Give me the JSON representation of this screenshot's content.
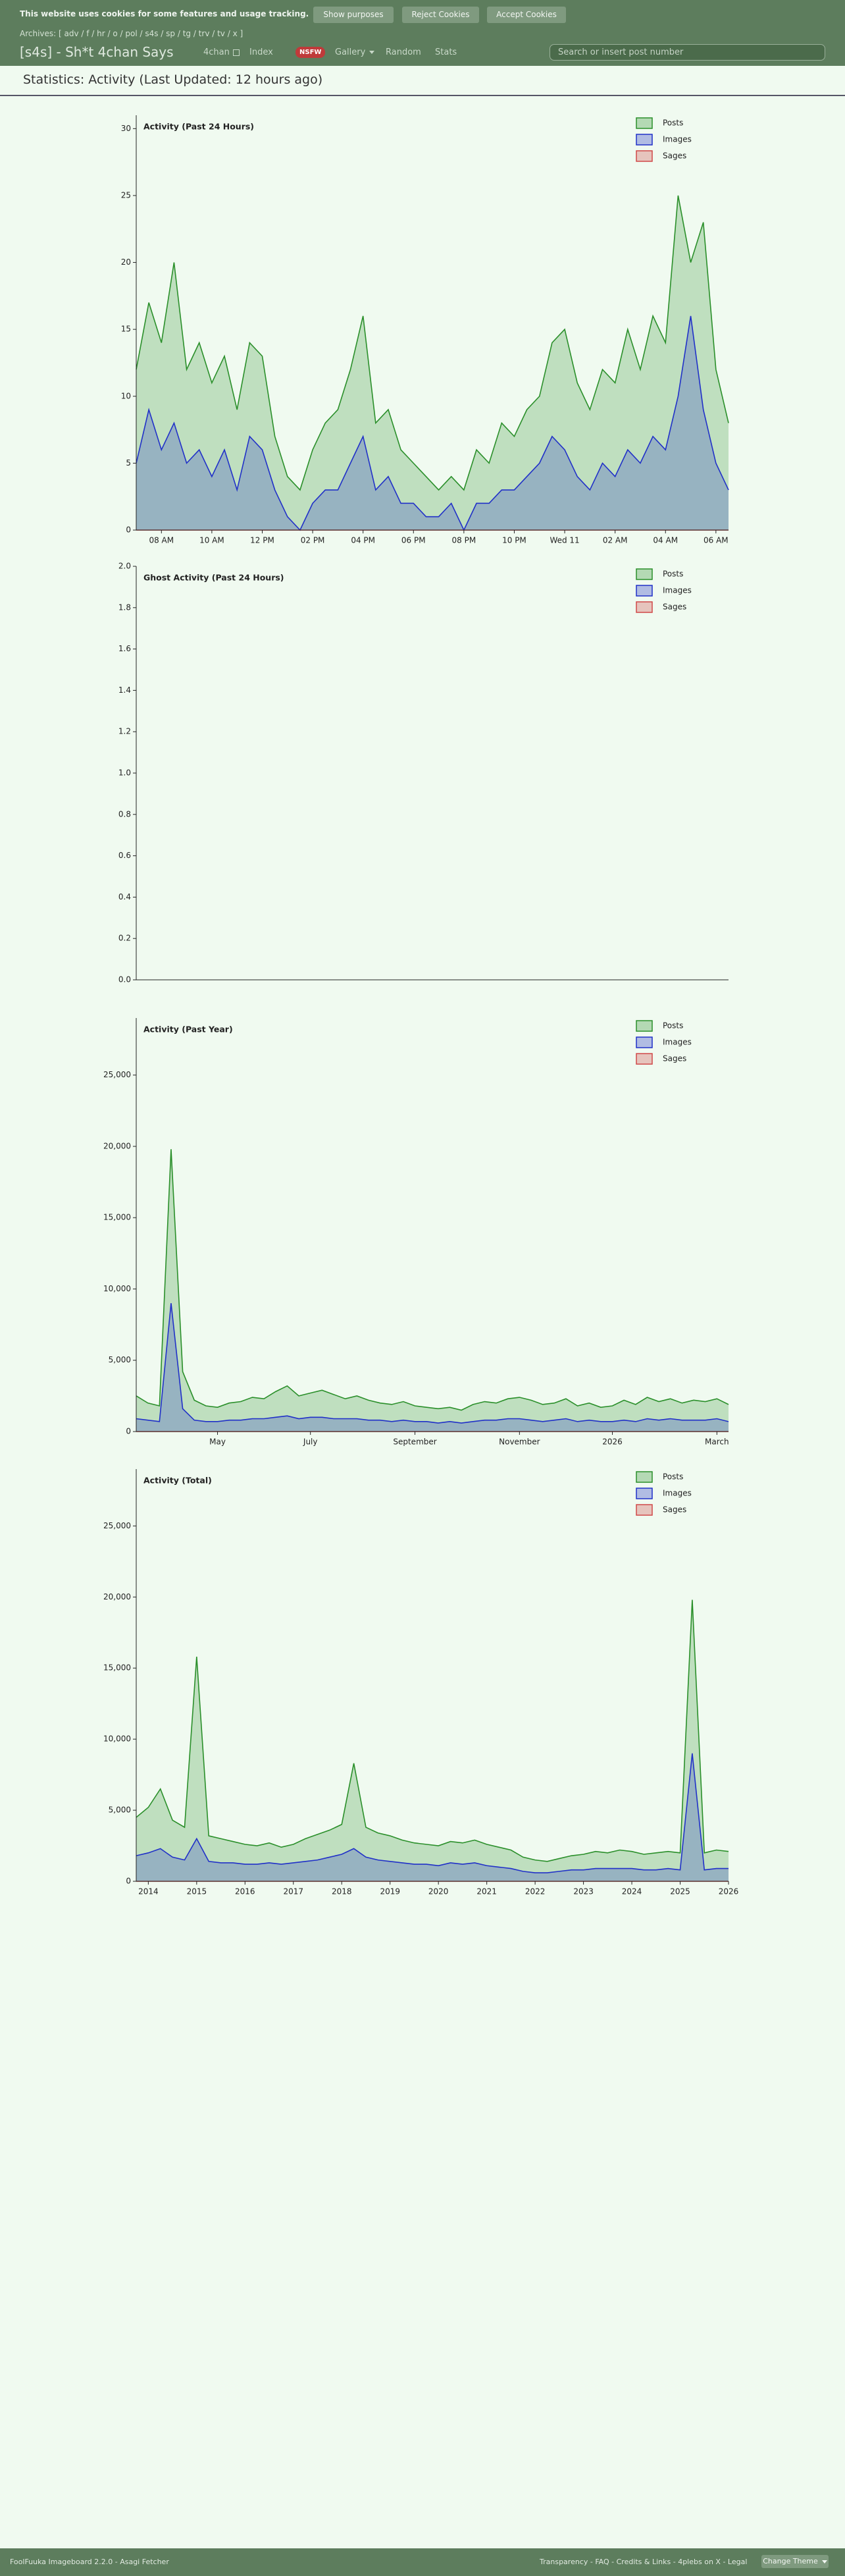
{
  "cookie_bar": {
    "text": "This website uses cookies for some features and usage tracking.",
    "buttons": [
      "Show purposes",
      "Reject Cookies",
      "Accept Cookies"
    ]
  },
  "archives": "Archives: [ adv / f / hr / o / pol / s4s / sp / tg / trv / tv / x ]",
  "header": {
    "board_title": "[s4s] - Sh*t 4chan Says",
    "nav": [
      "4chan",
      "Index",
      "NSFW",
      "Gallery",
      "Random",
      "Stats"
    ],
    "search_placeholder": "Search or insert post number"
  },
  "page_title": "Statistics: Activity (Last Updated: 12 hours ago)",
  "chart_data": [
    {
      "type": "area",
      "title": "Activity (Past 24 Hours)",
      "legend": "top-right",
      "categories": [
        null,
        null,
        "08 AM",
        null,
        null,
        null,
        "10 AM",
        null,
        null,
        null,
        "12 PM",
        null,
        null,
        null,
        "02 PM",
        null,
        null,
        null,
        "04 PM",
        null,
        null,
        null,
        "06 PM",
        null,
        null,
        null,
        "08 PM",
        null,
        null,
        null,
        "10 PM",
        null,
        null,
        null,
        "Wed 11",
        null,
        null,
        null,
        "02 AM",
        null,
        null,
        null,
        "04 AM",
        null,
        null,
        null,
        "06 AM",
        null
      ],
      "ylim": [
        0,
        31
      ],
      "yticks": [
        0,
        5,
        10,
        15,
        20,
        25,
        30
      ],
      "series": [
        {
          "name": "Posts",
          "color": "#2a8f2a",
          "values": [
            12,
            17,
            14,
            20,
            12,
            14,
            11,
            13,
            9,
            14,
            13,
            7,
            4,
            3,
            6,
            8,
            9,
            12,
            16,
            8,
            9,
            6,
            5,
            4,
            3,
            4,
            3,
            6,
            5,
            8,
            7,
            9,
            10,
            14,
            15,
            11,
            9,
            12,
            11,
            15,
            12,
            16,
            14,
            25,
            20,
            23,
            12,
            8
          ]
        },
        {
          "name": "Images",
          "color": "#2030c8",
          "values": [
            5,
            9,
            6,
            8,
            5,
            6,
            4,
            6,
            3,
            7,
            6,
            3,
            1,
            0,
            2,
            3,
            3,
            5,
            7,
            3,
            4,
            2,
            2,
            1,
            1,
            2,
            0,
            2,
            2,
            3,
            3,
            4,
            5,
            7,
            6,
            4,
            3,
            5,
            4,
            6,
            5,
            7,
            6,
            10,
            16,
            9,
            5,
            3
          ]
        },
        {
          "name": "Sages",
          "color": "#d04848",
          "values": [
            0,
            0,
            0,
            0,
            0,
            0,
            0,
            0,
            0,
            0,
            0,
            0,
            0,
            0,
            0,
            0,
            0,
            0,
            0,
            0,
            0,
            0,
            0,
            0,
            0,
            0,
            0,
            0,
            0,
            0,
            0,
            0,
            0,
            0,
            0,
            0,
            0,
            0,
            0,
            0,
            0,
            0,
            0,
            0,
            0,
            0,
            0,
            0
          ]
        }
      ]
    },
    {
      "type": "area",
      "title": "Ghost Activity (Past 24 Hours)",
      "legend": "top-right",
      "categories": [],
      "ylim": [
        0,
        2
      ],
      "yticks": [
        {
          "value": 0,
          "label": "0.0"
        },
        {
          "value": 0.2,
          "label": "0.2"
        },
        {
          "value": 0.4,
          "label": "0.4"
        },
        {
          "value": 0.6,
          "label": "0.6"
        },
        {
          "value": 0.8,
          "label": "0.8"
        },
        {
          "value": 1,
          "label": "1.0"
        },
        {
          "value": 1.2,
          "label": "1.2"
        },
        {
          "value": 1.4,
          "label": "1.4"
        },
        {
          "value": 1.6,
          "label": "1.6"
        },
        {
          "value": 1.8,
          "label": "1.8"
        },
        {
          "value": 2,
          "label": "2.0"
        }
      ],
      "series": [
        {
          "name": "Posts",
          "color": "#2a8f2a",
          "values": []
        },
        {
          "name": "Images",
          "color": "#2030c8",
          "values": []
        },
        {
          "name": "Sages",
          "color": "#d04848",
          "values": []
        }
      ]
    },
    {
      "type": "area",
      "title": "Activity (Past Year)",
      "legend": "top-right",
      "categories": [
        null,
        null,
        null,
        null,
        null,
        null,
        null,
        "May",
        null,
        null,
        null,
        null,
        null,
        null,
        null,
        "July",
        null,
        null,
        null,
        null,
        null,
        null,
        null,
        null,
        "September",
        null,
        null,
        null,
        null,
        null,
        null,
        null,
        null,
        "November",
        null,
        null,
        null,
        null,
        null,
        null,
        null,
        "2026",
        null,
        null,
        null,
        null,
        null,
        null,
        null,
        null,
        "March",
        null
      ],
      "ylim": [
        0,
        29000
      ],
      "yticks": [
        0,
        {
          "value": 5000,
          "label": "5,000"
        },
        {
          "value": 10000,
          "label": "10,000"
        },
        {
          "value": 15000,
          "label": "15,000"
        },
        {
          "value": 20000,
          "label": "20,000"
        },
        {
          "value": 25000,
          "label": "25,000"
        }
      ],
      "series": [
        {
          "name": "Posts",
          "color": "#2a8f2a",
          "values": [
            2500,
            2000,
            1800,
            19800,
            4200,
            2200,
            1800,
            1700,
            2000,
            2100,
            2400,
            2300,
            2800,
            3200,
            2500,
            2700,
            2900,
            2600,
            2300,
            2500,
            2200,
            2000,
            1900,
            2100,
            1800,
            1700,
            1600,
            1700,
            1500,
            1900,
            2100,
            2000,
            2300,
            2400,
            2200,
            1900,
            2000,
            2300,
            1800,
            2000,
            1700,
            1800,
            2200,
            1900,
            2400,
            2100,
            2300,
            2000,
            2200,
            2100,
            2300,
            1900
          ]
        },
        {
          "name": "Images",
          "color": "#2030c8",
          "values": [
            900,
            800,
            700,
            9000,
            1600,
            800,
            700,
            700,
            800,
            800,
            900,
            900,
            1000,
            1100,
            900,
            1000,
            1000,
            900,
            900,
            900,
            800,
            800,
            700,
            800,
            700,
            700,
            600,
            700,
            600,
            700,
            800,
            800,
            900,
            900,
            800,
            700,
            800,
            900,
            700,
            800,
            700,
            700,
            800,
            700,
            900,
            800,
            900,
            800,
            800,
            800,
            900,
            700
          ]
        },
        {
          "name": "Sages",
          "color": "#d04848",
          "values": [
            0,
            0,
            0,
            0,
            0,
            0,
            0,
            0,
            0,
            0,
            0,
            0,
            0,
            0,
            0,
            0,
            0,
            0,
            0,
            0,
            0,
            0,
            0,
            0,
            0,
            0,
            0,
            0,
            0,
            0,
            0,
            0,
            0,
            0,
            0,
            0,
            0,
            0,
            0,
            0,
            0,
            0,
            0,
            0,
            0,
            0,
            0,
            0,
            0,
            0,
            0,
            0
          ]
        }
      ]
    },
    {
      "type": "area",
      "title": "Activity (Total)",
      "legend": "top-right",
      "categories": [
        null,
        "2014",
        null,
        null,
        null,
        "2015",
        null,
        null,
        null,
        "2016",
        null,
        null,
        null,
        "2017",
        null,
        null,
        null,
        "2018",
        null,
        null,
        null,
        "2019",
        null,
        null,
        null,
        "2020",
        null,
        null,
        null,
        "2021",
        null,
        null,
        null,
        "2022",
        null,
        null,
        null,
        "2023",
        null,
        null,
        null,
        "2024",
        null,
        null,
        null,
        "2025",
        null,
        null,
        null,
        "2026"
      ],
      "ylim": [
        0,
        29000
      ],
      "yticks": [
        0,
        {
          "value": 5000,
          "label": "5,000"
        },
        {
          "value": 10000,
          "label": "10,000"
        },
        {
          "value": 15000,
          "label": "15,000"
        },
        {
          "value": 20000,
          "label": "20,000"
        },
        {
          "value": 25000,
          "label": "25,000"
        }
      ],
      "series": [
        {
          "name": "Posts",
          "color": "#2a8f2a",
          "values": [
            4500,
            5200,
            6500,
            4300,
            3800,
            15800,
            3200,
            3000,
            2800,
            2600,
            2500,
            2700,
            2400,
            2600,
            3000,
            3300,
            3600,
            4000,
            8300,
            3800,
            3400,
            3200,
            2900,
            2700,
            2600,
            2500,
            2800,
            2700,
            2900,
            2600,
            2400,
            2200,
            1700,
            1500,
            1400,
            1600,
            1800,
            1900,
            2100,
            2000,
            2200,
            2100,
            1900,
            2000,
            2100,
            2000,
            19800,
            2000,
            2200,
            2100
          ]
        },
        {
          "name": "Images",
          "color": "#2030c8",
          "values": [
            1800,
            2000,
            2300,
            1700,
            1500,
            3000,
            1400,
            1300,
            1300,
            1200,
            1200,
            1300,
            1200,
            1300,
            1400,
            1500,
            1700,
            1900,
            2300,
            1700,
            1500,
            1400,
            1300,
            1200,
            1200,
            1100,
            1300,
            1200,
            1300,
            1100,
            1000,
            900,
            700,
            600,
            600,
            700,
            800,
            800,
            900,
            900,
            900,
            900,
            800,
            800,
            900,
            800,
            9000,
            800,
            900,
            900
          ]
        },
        {
          "name": "Sages",
          "color": "#d04848",
          "values": [
            0,
            0,
            0,
            0,
            0,
            0,
            0,
            0,
            0,
            0,
            0,
            0,
            0,
            0,
            0,
            0,
            0,
            0,
            0,
            0,
            0,
            0,
            0,
            0,
            0,
            0,
            0,
            0,
            0,
            0,
            0,
            0,
            0,
            0,
            0,
            0,
            0,
            0,
            0,
            0,
            0,
            0,
            0,
            0,
            0,
            0,
            0,
            0,
            0,
            0
          ]
        }
      ]
    }
  ],
  "footer": {
    "left": "FoolFuuka Imageboard 2.2.0 - Asagi Fetcher",
    "links": "Transparency - FAQ - Credits & Links - 4plebs on X - Legal",
    "theme_button": "Change Theme"
  }
}
